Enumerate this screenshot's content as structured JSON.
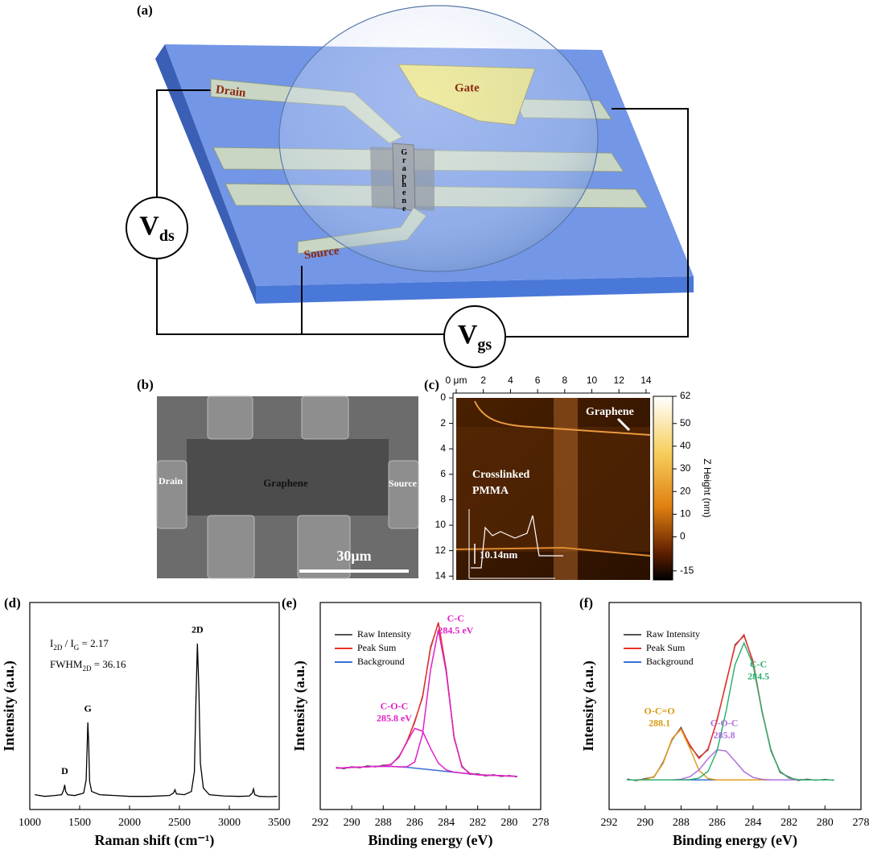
{
  "panel_labels": [
    "(a)",
    "(b)",
    "(c)",
    "(d)",
    "(e)",
    "(f)"
  ],
  "schematic": {
    "drain": "Drain",
    "gate": "Gate",
    "graphene": "Graphene",
    "source": "Source",
    "vds": [
      "V",
      "ds"
    ],
    "vgs": [
      "V",
      "gs"
    ]
  },
  "sem": {
    "drain": "Drain",
    "graphene": "Graphene",
    "source": "Source",
    "scale_bar": "30μm"
  },
  "afm": {
    "xlim": [
      0,
      14.3
    ],
    "xticks": [
      {
        "value": 0,
        "label": "0 μm"
      },
      2,
      4,
      6,
      8,
      10,
      12,
      14
    ],
    "ylim": [
      0,
      14.3
    ],
    "yticks": [
      0,
      2,
      4,
      6,
      8,
      10,
      12,
      14
    ],
    "zlim": [
      -19,
      62
    ],
    "zticks": [
      62,
      50,
      40,
      30,
      20,
      10,
      0,
      -15
    ],
    "z_label": "Z Height (nm)",
    "graphene": "Graphene",
    "pmma": [
      "Crosslinked",
      "PMMA"
    ],
    "step": "10.14nm"
  },
  "chart_data": [
    {
      "type": "line",
      "x_label": "Raman shift (cm⁻¹)",
      "y_label": "Intensity (a.u.)",
      "xlim": [
        1000,
        3500
      ],
      "xticks": [
        1000,
        1500,
        2000,
        2500,
        3000,
        3500
      ],
      "ylim": [
        -3,
        123
      ],
      "x": [
        1050,
        1150,
        1250,
        1320,
        1340,
        1350,
        1360,
        1380,
        1450,
        1540,
        1565,
        1575,
        1582,
        1590,
        1600,
        1620,
        1700,
        1850,
        2000,
        2200,
        2400,
        2440,
        2455,
        2470,
        2550,
        2620,
        2650,
        2665,
        2680,
        2695,
        2710,
        2740,
        2800,
        2950,
        3100,
        3200,
        3230,
        3242,
        3255,
        3300,
        3400,
        3480
      ],
      "series": [
        {
          "color": "#000000",
          "values": [
            6,
            5,
            5.5,
            6,
            9,
            12,
            8,
            6,
            5.5,
            7,
            15,
            35,
            50,
            38,
            14,
            8,
            6,
            5.5,
            5,
            5,
            5.5,
            7,
            9,
            6.5,
            6,
            8,
            20,
            62,
            98,
            70,
            25,
            10,
            6,
            5.2,
            5,
            5.2,
            7,
            9.5,
            6,
            5,
            4.8,
            5
          ]
        }
      ],
      "annotations": [
        {
          "lines": [
            "D"
          ],
          "x": 1350,
          "y": 20,
          "color": "#000000"
        },
        {
          "lines": [
            "G"
          ],
          "x": 1582,
          "y": 58,
          "color": "#000000"
        },
        {
          "lines": [
            "2D"
          ],
          "x": 2680,
          "y": 106,
          "color": "#000000"
        }
      ],
      "notes": [
        [
          "I",
          "2D",
          " / I",
          "G",
          " = 2.17"
        ],
        [
          "FWHM",
          "2D",
          " = 36.16"
        ]
      ]
    },
    {
      "type": "line",
      "x_label": "Binding energy (eV)",
      "y_label": "Intensity (a.u.)",
      "xlim": [
        292,
        278
      ],
      "xticks": [
        292,
        290,
        288,
        286,
        284,
        282,
        280,
        278
      ],
      "ylim": [
        -15,
        110
      ],
      "x": [
        291,
        290.5,
        290,
        289.5,
        289,
        288.5,
        288,
        287.5,
        287,
        286.5,
        286,
        285.5,
        285,
        284.5,
        284,
        283.5,
        283,
        282.5,
        282,
        281.5,
        281,
        280.5,
        280,
        279.5
      ],
      "series": [
        {
          "name": "Raw Intensity",
          "color": "#555555",
          "values": [
            10.5,
            9.6,
            10.9,
            10.1,
            11.4,
            10.7,
            11.8,
            12.0,
            17.2,
            25.4,
            38.5,
            52.6,
            83.1,
            97.4,
            69.8,
            27.9,
            11.3,
            6.2,
            6.6,
            5.2,
            6.1,
            4.9,
            5.6,
            4.6
          ]
        },
        {
          "name": "Peak Sum",
          "color": "#e8302a",
          "values": [
            10,
            10.2,
            10.4,
            10.6,
            10.8,
            11,
            11.2,
            12.3,
            16.6,
            26,
            37.7,
            53.5,
            82,
            98,
            68.9,
            28.7,
            10.7,
            6.8,
            6,
            5.8,
            5.6,
            5.4,
            5.2,
            5
          ]
        },
        {
          "name": "Background",
          "color": "#3a6fd8",
          "values": [
            10,
            10.2,
            10.4,
            10.6,
            10.8,
            11,
            11,
            11,
            10.8,
            10.5,
            10,
            9.5,
            9,
            8.5,
            8,
            7.5,
            7,
            6.5,
            6,
            5.8,
            5.6,
            5.4,
            5.2,
            5
          ]
        },
        {
          "color": "#e020c8",
          "values": [
            10,
            10.2,
            10.4,
            10.6,
            10.8,
            11,
            11.2,
            12.3,
            16.6,
            25.7,
            34,
            32.3,
            22,
            13,
            8.9,
            7.5,
            7,
            6.5,
            6,
            5.8,
            5.6,
            5.4,
            5.2,
            5
          ]
        },
        {
          "color": "#e020c8",
          "values": [
            10,
            10.2,
            10.4,
            10.6,
            10.8,
            11,
            11,
            11,
            10.8,
            10.8,
            13.7,
            30.7,
            69,
            93.5,
            68,
            28.7,
            10.7,
            6.8,
            6,
            5.8,
            5.6,
            5.4,
            5.2,
            5
          ]
        }
      ],
      "annotations": [
        {
          "lines": [
            "C-C",
            "284.5 eV"
          ],
          "x": 283.4,
          "y": 100,
          "color": "#e020c8"
        },
        {
          "lines": [
            "C-O-C",
            "285.8 eV"
          ],
          "x": 287.3,
          "y": 47,
          "color": "#e020c8"
        }
      ]
    },
    {
      "type": "line",
      "x_label": "Binding energy (eV)",
      "y_label": "Intensity (a.u.)",
      "xlim": [
        292,
        278
      ],
      "xticks": [
        292,
        290,
        288,
        286,
        284,
        282,
        280,
        278
      ],
      "ylim": [
        -15,
        118
      ],
      "x": [
        291,
        290.5,
        290,
        289.5,
        289,
        288.5,
        288,
        287.5,
        287,
        286.5,
        286,
        285.5,
        285,
        284.5,
        284,
        283.5,
        283,
        282.5,
        282,
        281.5,
        281,
        280.5,
        280,
        279.5
      ],
      "series": [
        {
          "name": "Raw Intensity",
          "color": "#555555",
          "values": [
            4.6,
            3.5,
            4.9,
            5.8,
            15.5,
            29.6,
            37.8,
            25.5,
            18.6,
            23.2,
            42.9,
            65.8,
            91.0,
            96.5,
            80.4,
            47.5,
            23.4,
            8.8,
            5.9,
            3.6,
            4.5,
            3.8,
            4.4,
            3.7
          ]
        },
        {
          "name": "Peak Sum",
          "color": "#e8302a",
          "values": [
            4,
            4,
            4.2,
            6.2,
            14.7,
            30.4,
            37,
            26.3,
            17.8,
            24,
            42,
            66.6,
            90.1,
            97.3,
            79.6,
            48.4,
            22.6,
            9.5,
            5.2,
            4.2,
            4,
            4,
            4,
            4
          ]
        },
        {
          "name": "Background",
          "color": "#3a6fd8",
          "values": [
            4,
            4,
            4,
            4,
            4,
            4,
            4,
            4,
            4,
            4,
            4,
            4,
            4,
            4,
            4,
            4,
            4,
            4,
            4,
            4,
            4,
            4,
            4,
            4
          ]
        },
        {
          "color": "#e0a020",
          "values": [
            4,
            4,
            4.2,
            6.2,
            14.7,
            30.4,
            36.5,
            24,
            10.1,
            4.9,
            4,
            4,
            4,
            4,
            4,
            4,
            4,
            4,
            4,
            4,
            4,
            4,
            4,
            4
          ]
        },
        {
          "color": "#b070e0",
          "values": [
            4,
            4,
            4,
            4,
            4,
            4,
            4.5,
            6.1,
            10.5,
            17.6,
            23.4,
            22.6,
            16.1,
            9.3,
            5.6,
            4.4,
            4,
            4,
            4,
            4,
            4,
            4,
            4,
            4
          ]
        },
        {
          "color": "#30b070",
          "values": [
            4,
            4,
            4,
            4,
            4,
            4,
            4,
            4.2,
            5.2,
            9.5,
            22.6,
            48,
            78,
            92,
            78,
            48,
            22.6,
            9.5,
            5.2,
            4.2,
            4,
            4,
            4,
            4
          ]
        }
      ],
      "annotations": [
        {
          "lines": [
            "C-C",
            "284.5"
          ],
          "x": 283.7,
          "y": 78,
          "color": "#30b070"
        },
        {
          "lines": [
            "C-O-C",
            "285.8"
          ],
          "x": 285.6,
          "y": 40,
          "color": "#b070e0"
        },
        {
          "lines": [
            "O-C=O",
            "288.1"
          ],
          "x": 289.2,
          "y": 48,
          "color": "#d89a10"
        }
      ]
    }
  ]
}
